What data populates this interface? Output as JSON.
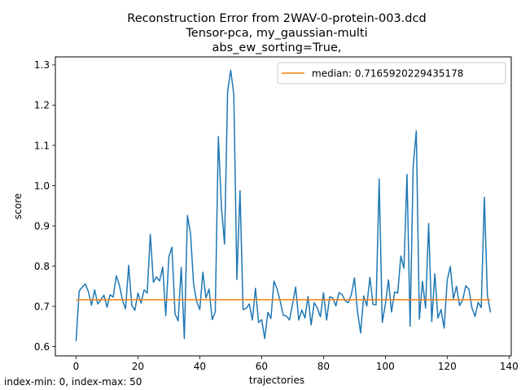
{
  "chart_data": {
    "type": "line",
    "title_lines": [
      "Reconstruction Error from 2WAV-0-protein-003.dcd",
      "Tensor-pca, my_gaussian-multi",
      "abs_ew_sorting=True,"
    ],
    "xlabel": "trajectories",
    "ylabel": "score",
    "xlim": [
      -6.7,
      140.7
    ],
    "ylim": [
      0.577,
      1.32
    ],
    "xticks": [
      0,
      20,
      40,
      60,
      80,
      100,
      120,
      140
    ],
    "yticks": [
      0.6,
      0.7,
      0.8,
      0.9,
      1.0,
      1.1,
      1.2,
      1.3
    ],
    "ytick_labels": [
      "0.6",
      "0.7",
      "0.8",
      "0.9",
      "1.0",
      "1.1",
      "1.2",
      "1.3"
    ],
    "grid": false,
    "legend_position": "top-right",
    "footer_note": "index-min: 0, index-max: 50",
    "colors": {
      "score": "#1f77b4",
      "median": "#ff7f0e"
    },
    "series": [
      {
        "values": [
          0.614,
          0.738,
          0.748,
          0.756,
          0.736,
          0.703,
          0.741,
          0.706,
          0.716,
          0.728,
          0.698,
          0.729,
          0.723,
          0.776,
          0.753,
          0.715,
          0.694,
          0.802,
          0.703,
          0.69,
          0.733,
          0.708,
          0.741,
          0.733,
          0.879,
          0.76,
          0.773,
          0.763,
          0.798,
          0.677,
          0.823,
          0.847,
          0.681,
          0.664,
          0.797,
          0.62,
          0.926,
          0.881,
          0.755,
          0.712,
          0.692,
          0.785,
          0.721,
          0.743,
          0.667,
          0.686,
          1.122,
          0.947,
          0.855,
          1.234,
          1.287,
          1.226,
          0.767,
          0.988,
          0.692,
          0.695,
          0.706,
          0.666,
          0.745,
          0.66,
          0.667,
          0.62,
          0.685,
          0.67,
          0.763,
          0.743,
          0.713,
          0.678,
          0.676,
          0.666,
          0.706,
          0.748,
          0.666,
          0.691,
          0.671,
          0.725,
          0.654,
          0.709,
          0.696,
          0.674,
          0.734,
          0.666,
          0.724,
          0.721,
          0.701,
          0.734,
          0.73,
          0.714,
          0.709,
          0.729,
          0.771,
          0.687,
          0.634,
          0.726,
          0.701,
          0.772,
          0.705,
          0.704,
          1.017,
          0.66,
          0.705,
          0.766,
          0.686,
          0.736,
          0.733,
          0.825,
          0.795,
          1.028,
          0.651,
          1.048,
          1.136,
          0.668,
          0.762,
          0.696,
          0.906,
          0.662,
          0.781,
          0.671,
          0.692,
          0.646,
          0.765,
          0.799,
          0.719,
          0.75,
          0.702,
          0.716,
          0.751,
          0.743,
          0.696,
          0.675,
          0.71,
          0.697,
          0.971,
          0.727,
          0.685
        ]
      },
      {
        "name": "median: 0.7165920229435178",
        "constant": 0.7165920229435178,
        "x_range": [
          0,
          134
        ]
      }
    ]
  }
}
